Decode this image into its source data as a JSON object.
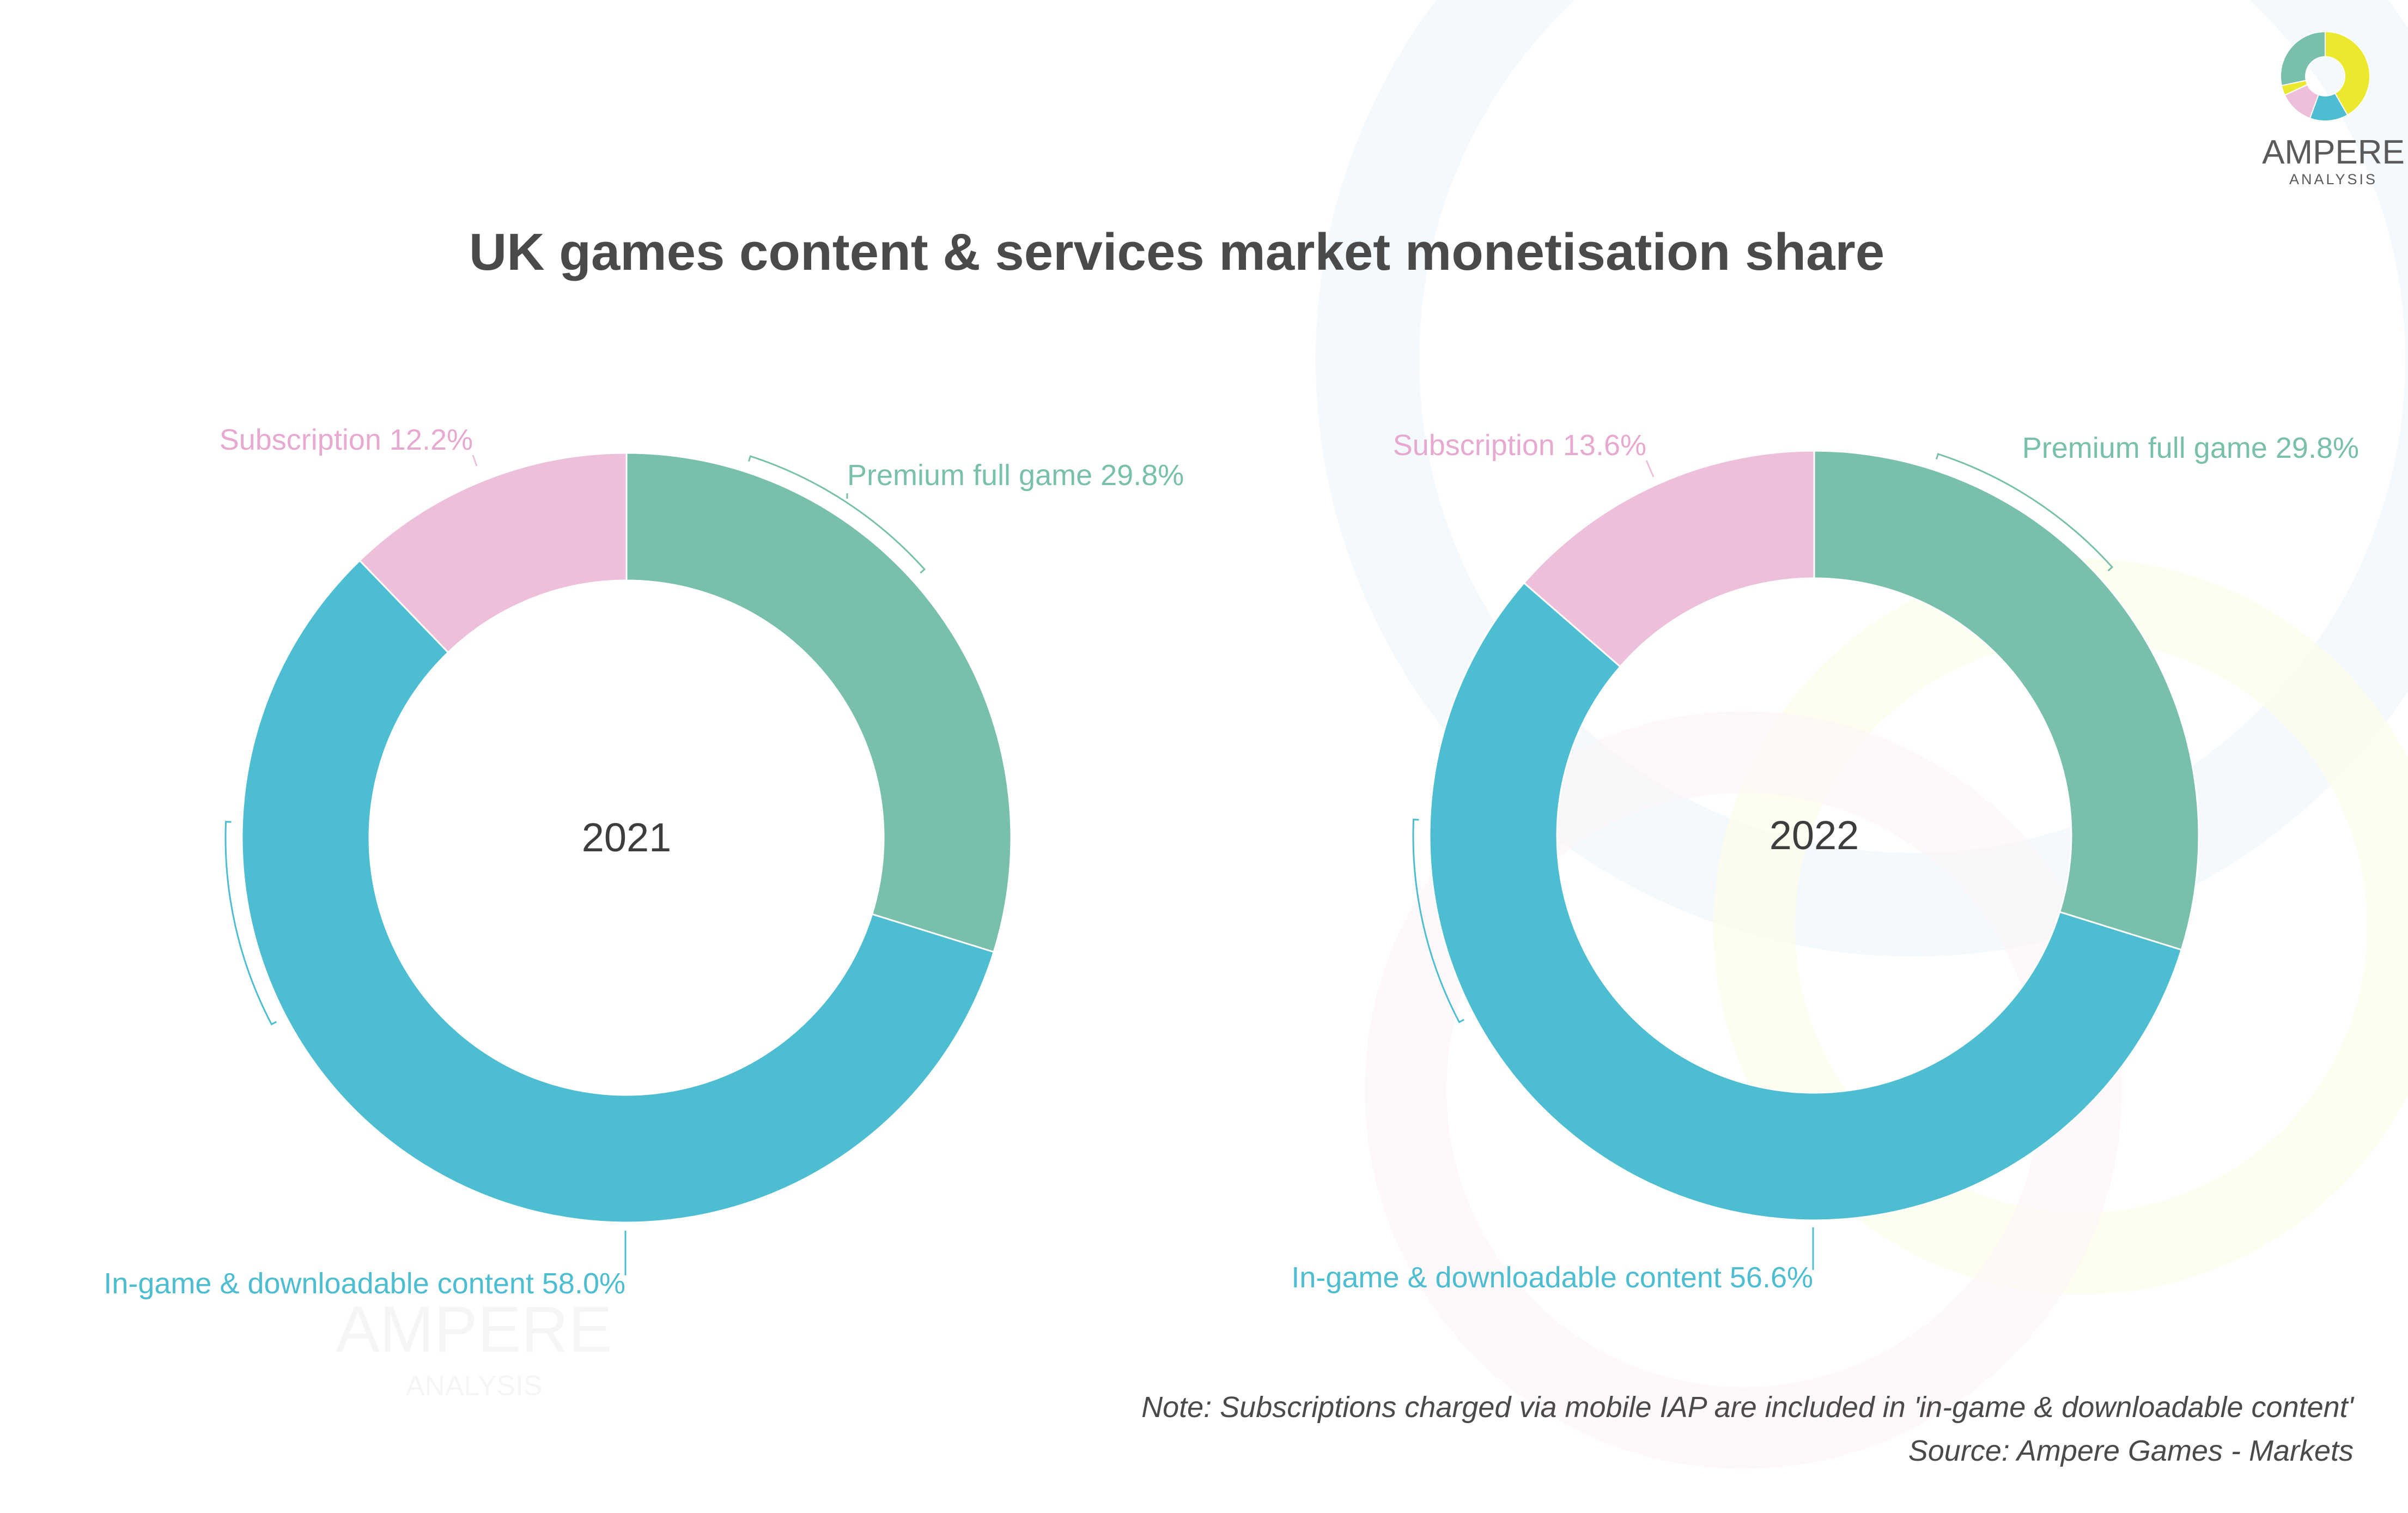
{
  "title": "UK games content & services market monetisation share",
  "brand": {
    "name": "AMPERE",
    "sub": "ANALYSIS"
  },
  "colors": {
    "premium": "#78bfac",
    "ingame": "#4dbdd1",
    "subscription": "#edbfdb",
    "logo_yellow": "#eae92e"
  },
  "chart_data": [
    {
      "type": "pie",
      "center_label": "2021",
      "labels": [
        "Premium full game",
        "In-game & downloadable content",
        "Subscription"
      ],
      "values": [
        29.8,
        58.0,
        12.2
      ],
      "data_labels": [
        "Premium full game 29.8%",
        "In-game & downloadable content 58.0%",
        "Subscription 12.2%"
      ]
    },
    {
      "type": "pie",
      "center_label": "2022",
      "labels": [
        "Premium full game",
        "In-game & downloadable content",
        "Subscription"
      ],
      "values": [
        29.8,
        56.6,
        13.6
      ],
      "data_labels": [
        "Premium full game 29.8%",
        "In-game & downloadable content 56.6%",
        "Subscription 13.6%"
      ]
    }
  ],
  "note": "Note: Subscriptions charged via mobile IAP are included in 'in-game & downloadable content'",
  "source": "Source: Ampere Games - Markets"
}
